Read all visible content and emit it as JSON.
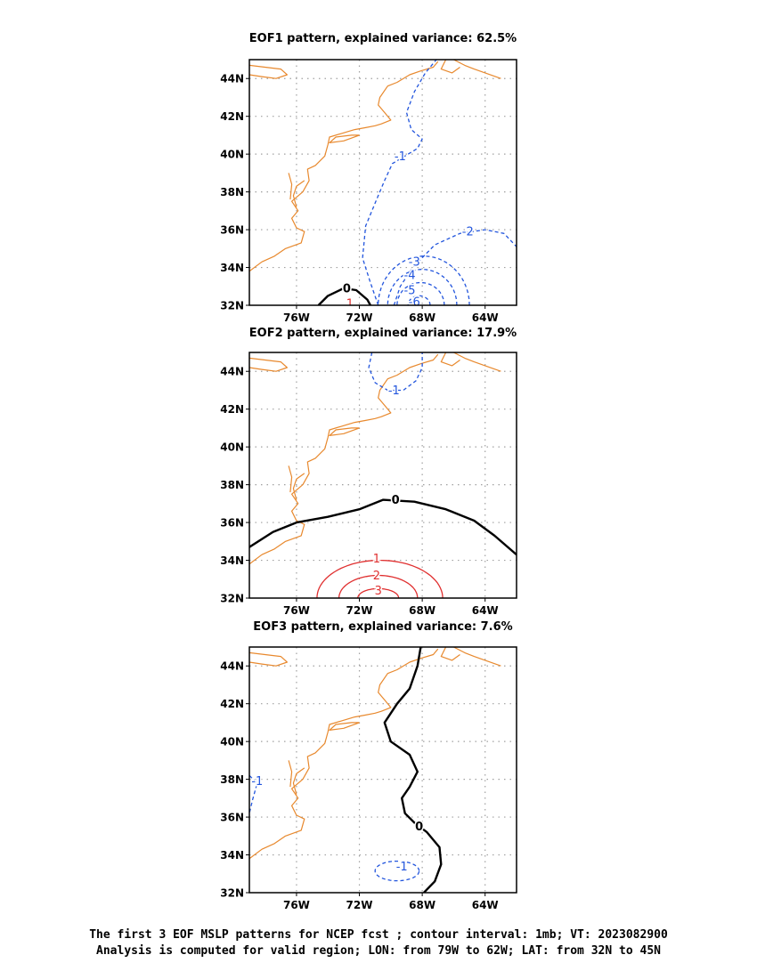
{
  "panels": [
    {
      "title": "EOF1 pattern, explained variance: 62.5%"
    },
    {
      "title": "EOF2 pattern, explained variance: 17.9%"
    },
    {
      "title": "EOF3 pattern, explained variance: 7.6%"
    }
  ],
  "axes": {
    "lat_ticks": [
      "32N",
      "34N",
      "36N",
      "38N",
      "40N",
      "42N",
      "44N"
    ],
    "lon_ticks": [
      "76W",
      "72W",
      "68W",
      "64W"
    ],
    "lon_range": [
      -79,
      -62
    ],
    "lat_range": [
      32,
      45
    ],
    "grid": true
  },
  "footer": {
    "line1": "The first 3 EOF MSLP patterns for NCEP fcst ; contour interval: 1mb; VT: 2023082900",
    "line2": "Analysis is computed for valid region; LON: from 79W to 62W; LAT: from 32N to 45N"
  },
  "colors": {
    "coast": "#e8892e",
    "negative": "#2255dd",
    "positive": "#e03030",
    "zero": "#000000",
    "grid": "#a0a0a0"
  },
  "chart_data": [
    {
      "type": "contour",
      "title": "EOF1 pattern, explained variance: 62.5%",
      "contour_labels": [
        {
          "label": "0",
          "lon": -72.8,
          "lat": 32.9
        },
        {
          "label": "1",
          "lon": -72.6,
          "lat": 32.1
        },
        {
          "label": "-1",
          "lon": -69.4,
          "lat": 39.9
        },
        {
          "label": "-2",
          "lon": -65.1,
          "lat": 35.9
        },
        {
          "label": "-3",
          "lon": -68.5,
          "lat": 34.3
        },
        {
          "label": "-4",
          "lon": -68.8,
          "lat": 33.6
        },
        {
          "label": "-5",
          "lon": -68.8,
          "lat": 32.8
        },
        {
          "label": "-6",
          "lon": -68.5,
          "lat": 32.2
        }
      ]
    },
    {
      "type": "contour",
      "title": "EOF2 pattern, explained variance: 17.9%",
      "contour_labels": [
        {
          "label": "0",
          "lon": -69.7,
          "lat": 37.2
        },
        {
          "label": "-1",
          "lon": -69.8,
          "lat": 43.0
        },
        {
          "label": "1",
          "lon": -70.9,
          "lat": 34.1
        },
        {
          "label": "2",
          "lon": -70.9,
          "lat": 33.2
        },
        {
          "label": "3",
          "lon": -70.8,
          "lat": 32.4
        }
      ]
    },
    {
      "type": "contour",
      "title": "EOF3 pattern, explained variance: 7.6%",
      "contour_labels": [
        {
          "label": "0",
          "lon": -68.2,
          "lat": 35.5
        },
        {
          "label": "-1",
          "lon": -69.3,
          "lat": 33.4
        },
        {
          "label": "-1",
          "lon": -78.5,
          "lat": 37.9
        }
      ]
    }
  ]
}
